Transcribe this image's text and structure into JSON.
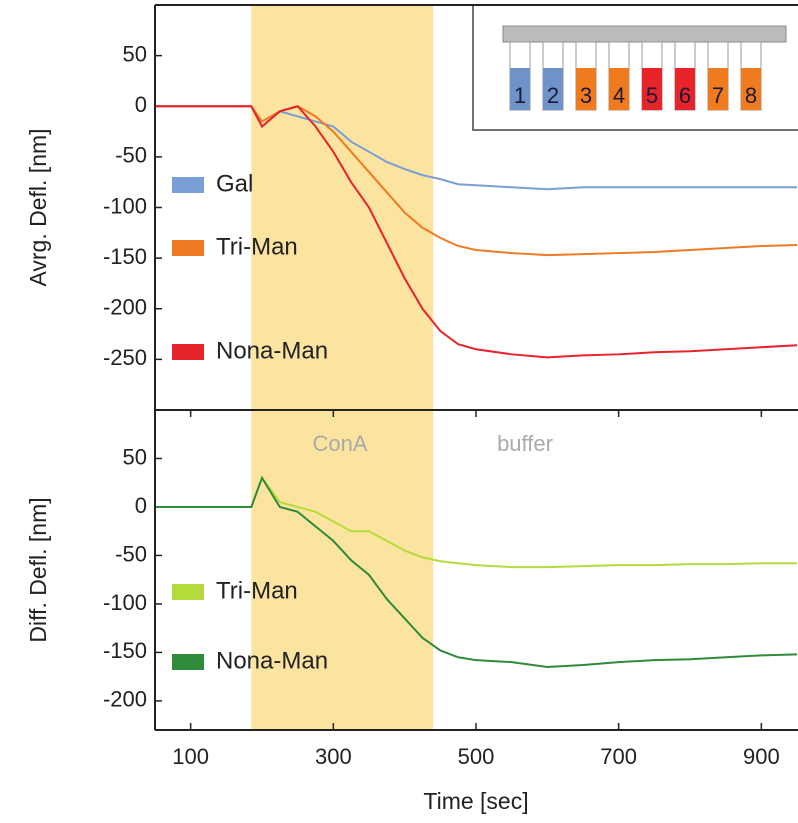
{
  "chart_data": [
    {
      "type": "line",
      "ylabel": "Avrg. Defl. [nm]",
      "xlim": [
        50,
        950
      ],
      "ylim": [
        -300,
        100
      ],
      "yticks": [
        -250,
        -200,
        -150,
        -100,
        -50,
        0,
        50
      ],
      "grid": false,
      "shade": {
        "x": [
          185,
          440
        ],
        "color": "#fbe3a0"
      },
      "x": [
        50,
        100,
        150,
        185,
        200,
        225,
        250,
        275,
        300,
        325,
        350,
        375,
        400,
        425,
        450,
        475,
        500,
        550,
        600,
        650,
        700,
        750,
        800,
        850,
        900,
        950
      ],
      "series": [
        {
          "name": "Gal",
          "color": "#7a9fd6",
          "values": [
            0,
            0,
            0,
            0,
            -20,
            -5,
            -10,
            -15,
            -20,
            -35,
            -45,
            -55,
            -62,
            -68,
            -72,
            -77,
            -78,
            -80,
            -82,
            -80,
            -80,
            -80,
            -80,
            -80,
            -80,
            -80
          ]
        },
        {
          "name": "Tri-Man",
          "color": "#f07a24",
          "values": [
            0,
            0,
            0,
            0,
            -15,
            -5,
            0,
            -10,
            -25,
            -45,
            -65,
            -85,
            -105,
            -120,
            -130,
            -138,
            -142,
            -145,
            -147,
            -146,
            -145,
            -144,
            -142,
            -140,
            -138,
            -137
          ]
        },
        {
          "name": "Nona-Man",
          "color": "#e8242b",
          "values": [
            0,
            0,
            0,
            0,
            -20,
            -5,
            0,
            -20,
            -45,
            -75,
            -100,
            -135,
            -170,
            -200,
            -222,
            -235,
            -240,
            -245,
            -248,
            -246,
            -245,
            -243,
            -242,
            -240,
            -238,
            -236
          ]
        }
      ],
      "inset": {
        "labels": [
          "1",
          "2",
          "3",
          "4",
          "5",
          "6",
          "7",
          "8"
        ],
        "colors": [
          "#6d93c8",
          "#6d93c8",
          "#f07a1e",
          "#f07a1e",
          "#e8242b",
          "#e8242b",
          "#f07a1e",
          "#f07a1e"
        ]
      }
    },
    {
      "type": "line",
      "ylabel": "Diff. Defl. [nm]",
      "xlabel": "Time [sec]",
      "xlim": [
        50,
        950
      ],
      "ylim": [
        -230,
        100
      ],
      "xticks": [
        100,
        300,
        500,
        700,
        900
      ],
      "yticks": [
        -200,
        -150,
        -100,
        -50,
        0,
        50
      ],
      "grid": false,
      "shade": {
        "x": [
          185,
          440
        ],
        "color": "#fbe3a0"
      },
      "annotations": [
        "ConA",
        "buffer"
      ],
      "x": [
        50,
        100,
        150,
        185,
        200,
        225,
        250,
        275,
        300,
        325,
        350,
        375,
        400,
        425,
        450,
        475,
        500,
        550,
        600,
        650,
        700,
        750,
        800,
        850,
        900,
        950
      ],
      "series": [
        {
          "name": "Tri-Man",
          "color": "#b5dc3c",
          "values": [
            0,
            0,
            0,
            0,
            30,
            5,
            0,
            -5,
            -15,
            -25,
            -25,
            -35,
            -45,
            -52,
            -56,
            -58,
            -60,
            -62,
            -62,
            -61,
            -60,
            -60,
            -59,
            -59,
            -58,
            -58
          ]
        },
        {
          "name": "Nona-Man",
          "color": "#2e8b3a",
          "values": [
            0,
            0,
            0,
            0,
            30,
            0,
            -5,
            -20,
            -35,
            -55,
            -70,
            -95,
            -115,
            -135,
            -148,
            -155,
            -158,
            -160,
            -165,
            -163,
            -160,
            -158,
            -157,
            -155,
            -153,
            -152
          ]
        }
      ]
    }
  ]
}
